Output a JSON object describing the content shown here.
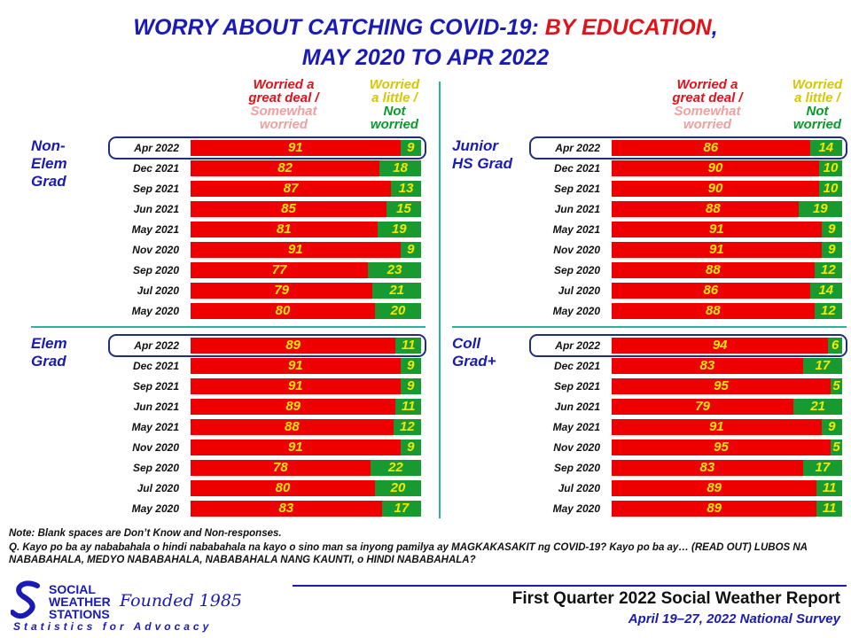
{
  "title": {
    "line1_part1": "WORRY ABOUT CATCHING COVID-19: ",
    "line1_part2": "BY EDUCATION",
    "line1_part3": ",",
    "line2": "MAY 2020 TO APR 2022"
  },
  "legend": {
    "worried_line1": "Worried a",
    "worried_line2": "great deal /",
    "worried_line3": "Somewhat",
    "worried_line4": "worried",
    "notworried_line1": "Worried",
    "notworried_line2": "a little /",
    "notworried_line3": "Not",
    "notworried_line4": "worried"
  },
  "colors": {
    "worried": "#ee0000",
    "not_worried": "#189a30",
    "value_text": "#f7e600",
    "title": "#1a1ab4"
  },
  "chart_data": [
    {
      "type": "bar",
      "stacked": true,
      "orientation": "horizontal",
      "group": "Non-Elem Grad",
      "categories": [
        "Apr 2022",
        "Dec 2021",
        "Sep 2021",
        "Jun 2021",
        "May 2021",
        "Nov 2020",
        "Sep 2020",
        "Jul 2020",
        "May 2020"
      ],
      "series": [
        {
          "name": "Worried a great deal / Somewhat worried",
          "values": [
            91,
            82,
            87,
            85,
            81,
            91,
            77,
            79,
            80
          ]
        },
        {
          "name": "Worried a little / Not worried",
          "values": [
            9,
            18,
            13,
            15,
            19,
            9,
            23,
            21,
            20
          ]
        }
      ]
    },
    {
      "type": "bar",
      "stacked": true,
      "orientation": "horizontal",
      "group": "Junior HS Grad",
      "categories": [
        "Apr 2022",
        "Dec 2021",
        "Sep 2021",
        "Jun 2021",
        "May 2021",
        "Nov 2020",
        "Sep 2020",
        "Jul 2020",
        "May 2020"
      ],
      "series": [
        {
          "name": "Worried a great deal / Somewhat worried",
          "values": [
            86,
            90,
            90,
            88,
            91,
            91,
            88,
            86,
            88
          ]
        },
        {
          "name": "Worried a little / Not worried",
          "values": [
            14,
            10,
            10,
            19,
            9,
            9,
            12,
            14,
            12
          ]
        }
      ]
    },
    {
      "type": "bar",
      "stacked": true,
      "orientation": "horizontal",
      "group": "Elem Grad",
      "categories": [
        "Apr 2022",
        "Dec 2021",
        "Sep 2021",
        "Jun 2021",
        "May 2021",
        "Nov 2020",
        "Sep 2020",
        "Jul 2020",
        "May 2020"
      ],
      "series": [
        {
          "name": "Worried a great deal / Somewhat worried",
          "values": [
            89,
            91,
            91,
            89,
            88,
            91,
            78,
            80,
            83
          ]
        },
        {
          "name": "Worried a little / Not worried",
          "values": [
            11,
            9,
            9,
            11,
            12,
            9,
            22,
            20,
            17
          ]
        }
      ]
    },
    {
      "type": "bar",
      "stacked": true,
      "orientation": "horizontal",
      "group": "Coll Grad+",
      "categories": [
        "Apr 2022",
        "Dec 2021",
        "Sep 2021",
        "Jun 2021",
        "May 2021",
        "Nov 2020",
        "Sep 2020",
        "Jul 2020",
        "May 2020"
      ],
      "series": [
        {
          "name": "Worried a great deal / Somewhat worried",
          "values": [
            94,
            83,
            95,
            79,
            91,
            95,
            83,
            89,
            89
          ]
        },
        {
          "name": "Worried a little / Not worried",
          "values": [
            6,
            17,
            5,
            21,
            9,
            5,
            17,
            11,
            11
          ]
        }
      ]
    }
  ],
  "notes": {
    "note1": "Note: Blank spaces are Don’t Know and Non-responses.",
    "note2": "Q. Kayo po ba ay nababahala o hindi nababahala na kayo o sino man sa inyong pamilya ay MAGKAKASAKIT ng COVID-19? Kayo po ba ay… (READ OUT) LUBOS NA NABABAHALA, MEDYO NABABAHALA, NABABAHALA NANG KAUNTI, o HINDI NABABAHALA?"
  },
  "footer": {
    "org_line1": "SOCIAL",
    "org_line2": "WEATHER",
    "org_line3": "STATIONS",
    "founded": "Founded 1985",
    "tagline": "Statistics for Advocacy",
    "report_title": "First Quarter 2022 Social Weather Report",
    "survey_dates": "April 19–27, 2022 National Survey"
  },
  "group_labels": {
    "g0": [
      "Non-",
      "Elem",
      "Grad"
    ],
    "g1": [
      "Junior",
      "HS Grad"
    ],
    "g2": [
      "Elem",
      "Grad"
    ],
    "g3": [
      "Coll",
      "Grad+"
    ]
  }
}
